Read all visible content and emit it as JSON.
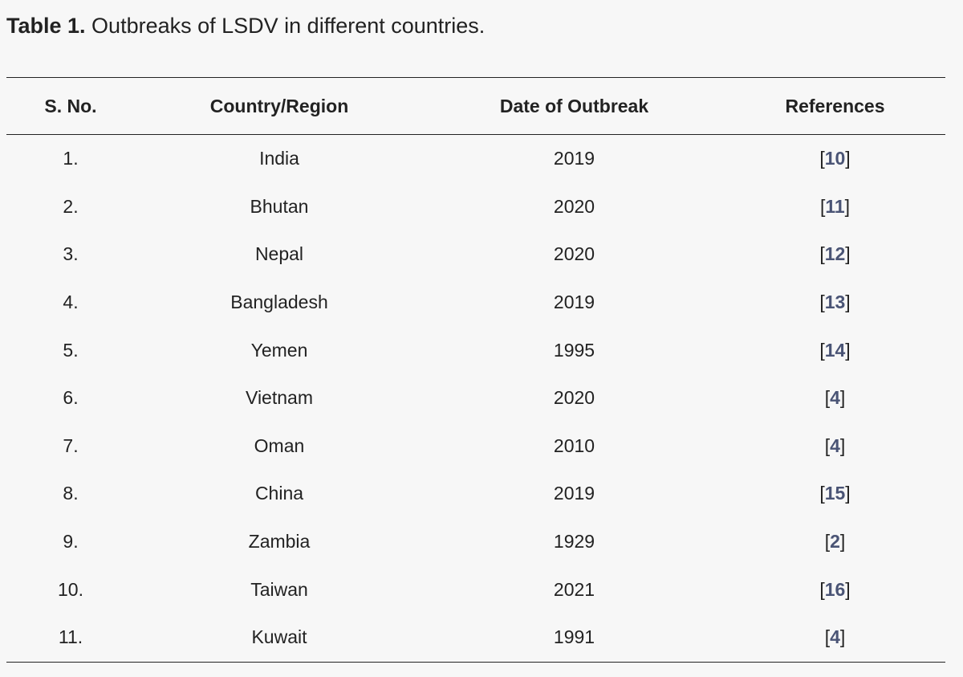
{
  "caption": {
    "label": "Table 1.",
    "text": " Outbreaks of LSDV in different countries."
  },
  "table": {
    "headers": [
      "S. No.",
      "Country/Region",
      "Date of Outbreak",
      "References"
    ],
    "rows": [
      {
        "no": "1.",
        "country": "India",
        "date": "2019",
        "ref": "10"
      },
      {
        "no": "2.",
        "country": "Bhutan",
        "date": "2020",
        "ref": "11"
      },
      {
        "no": "3.",
        "country": "Nepal",
        "date": "2020",
        "ref": "12"
      },
      {
        "no": "4.",
        "country": "Bangladesh",
        "date": "2019",
        "ref": "13"
      },
      {
        "no": "5.",
        "country": "Yemen",
        "date": "1995",
        "ref": "14"
      },
      {
        "no": "6.",
        "country": "Vietnam",
        "date": "2020",
        "ref": "4"
      },
      {
        "no": "7.",
        "country": "Oman",
        "date": "2010",
        "ref": "4"
      },
      {
        "no": "8.",
        "country": "China",
        "date": "2019",
        "ref": "15"
      },
      {
        "no": "9.",
        "country": "Zambia",
        "date": "1929",
        "ref": "2"
      },
      {
        "no": "10.",
        "country": "Taiwan",
        "date": "2021",
        "ref": "16"
      },
      {
        "no": "11.",
        "country": "Kuwait",
        "date": "1991",
        "ref": "4"
      }
    ]
  },
  "colors": {
    "link": "#4a5475",
    "text": "#222222",
    "background": "#f7f7f7"
  }
}
